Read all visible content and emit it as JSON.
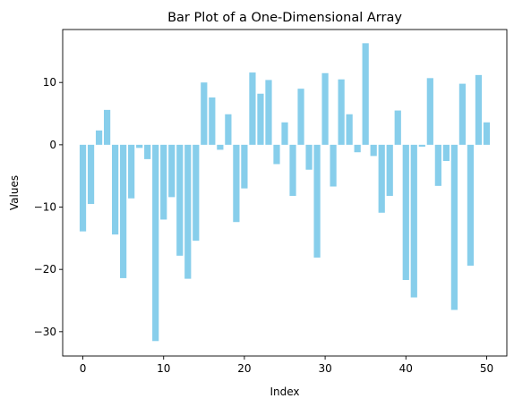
{
  "chart_data": {
    "type": "bar",
    "title": "Bar Plot of a One-Dimensional Array",
    "xlabel": "Index",
    "ylabel": "Values",
    "xlim": [
      -2.5,
      52.5
    ],
    "ylim": [
      -33.9,
      18.5
    ],
    "xticks": [
      0,
      10,
      20,
      30,
      40,
      50
    ],
    "yticks": [
      -30,
      -20,
      -10,
      0,
      10
    ],
    "grid": false,
    "bar_color": "#87CEEB",
    "x": [
      0,
      1,
      2,
      3,
      4,
      5,
      6,
      7,
      8,
      9,
      10,
      11,
      12,
      13,
      14,
      15,
      16,
      17,
      18,
      19,
      20,
      21,
      22,
      23,
      24,
      25,
      26,
      27,
      28,
      29,
      30,
      31,
      32,
      33,
      34,
      35,
      36,
      37,
      38,
      39,
      40,
      41,
      42,
      43,
      44,
      45,
      46,
      47,
      48,
      49,
      50
    ],
    "values": [
      -13.9,
      -9.5,
      2.3,
      5.6,
      -14.4,
      -21.4,
      -8.6,
      -0.5,
      -2.3,
      -31.5,
      -12.0,
      -8.4,
      -17.8,
      -21.5,
      -15.4,
      10.0,
      7.6,
      -0.8,
      4.9,
      -12.4,
      -7.0,
      11.6,
      8.2,
      10.4,
      -3.1,
      3.6,
      -8.2,
      9.0,
      -4.0,
      -18.1,
      11.5,
      -6.7,
      10.5,
      4.9,
      -1.2,
      16.3,
      -1.8,
      -10.9,
      -8.2,
      5.5,
      -21.7,
      -24.5,
      -0.3,
      10.7,
      -6.6,
      -2.6,
      -26.5,
      9.8,
      -19.4,
      11.2,
      3.6
    ]
  }
}
